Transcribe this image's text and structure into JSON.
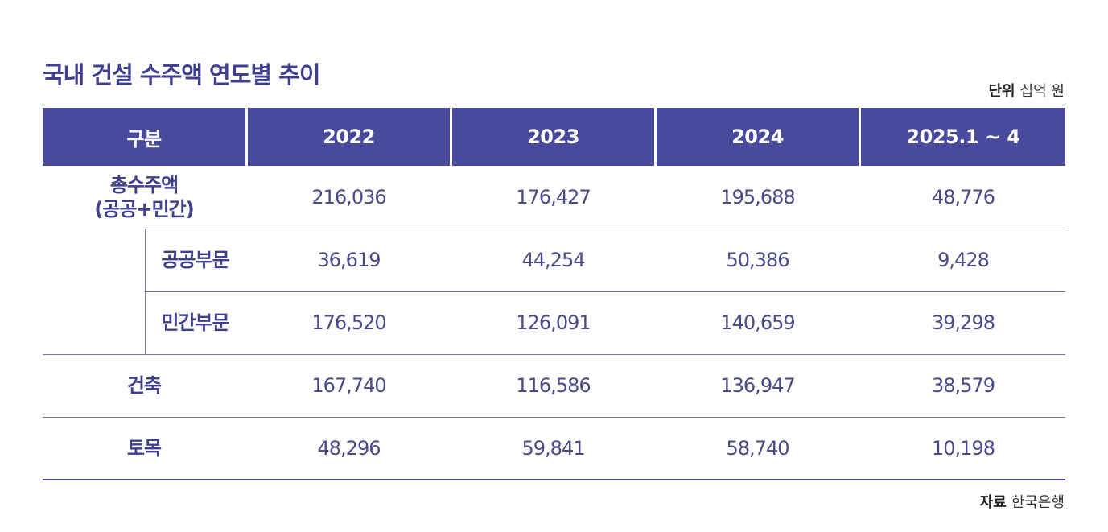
{
  "title": "국내 건설 수주액 연도별 추이",
  "unit": {
    "label": "단위",
    "value": "십억 원"
  },
  "source": {
    "label": "자료",
    "value": "한국은행"
  },
  "headers": [
    "구분",
    "2022",
    "2023",
    "2024",
    "2025.1 ~ 4"
  ],
  "rows": [
    {
      "label": "총수주액\n(공공+민간)",
      "values": [
        "216,036",
        "176,427",
        "195,688",
        "48,776"
      ]
    },
    {
      "label": "공공부문",
      "values": [
        "36,619",
        "44,254",
        "50,386",
        "9,428"
      ]
    },
    {
      "label": "민간부문",
      "values": [
        "176,520",
        "126,091",
        "140,659",
        "39,298"
      ]
    },
    {
      "label": "건축",
      "values": [
        "167,740",
        "116,586",
        "136,947",
        "38,579"
      ]
    },
    {
      "label": "토목",
      "values": [
        "48,296",
        "59,841",
        "58,740",
        "10,198"
      ]
    }
  ]
}
